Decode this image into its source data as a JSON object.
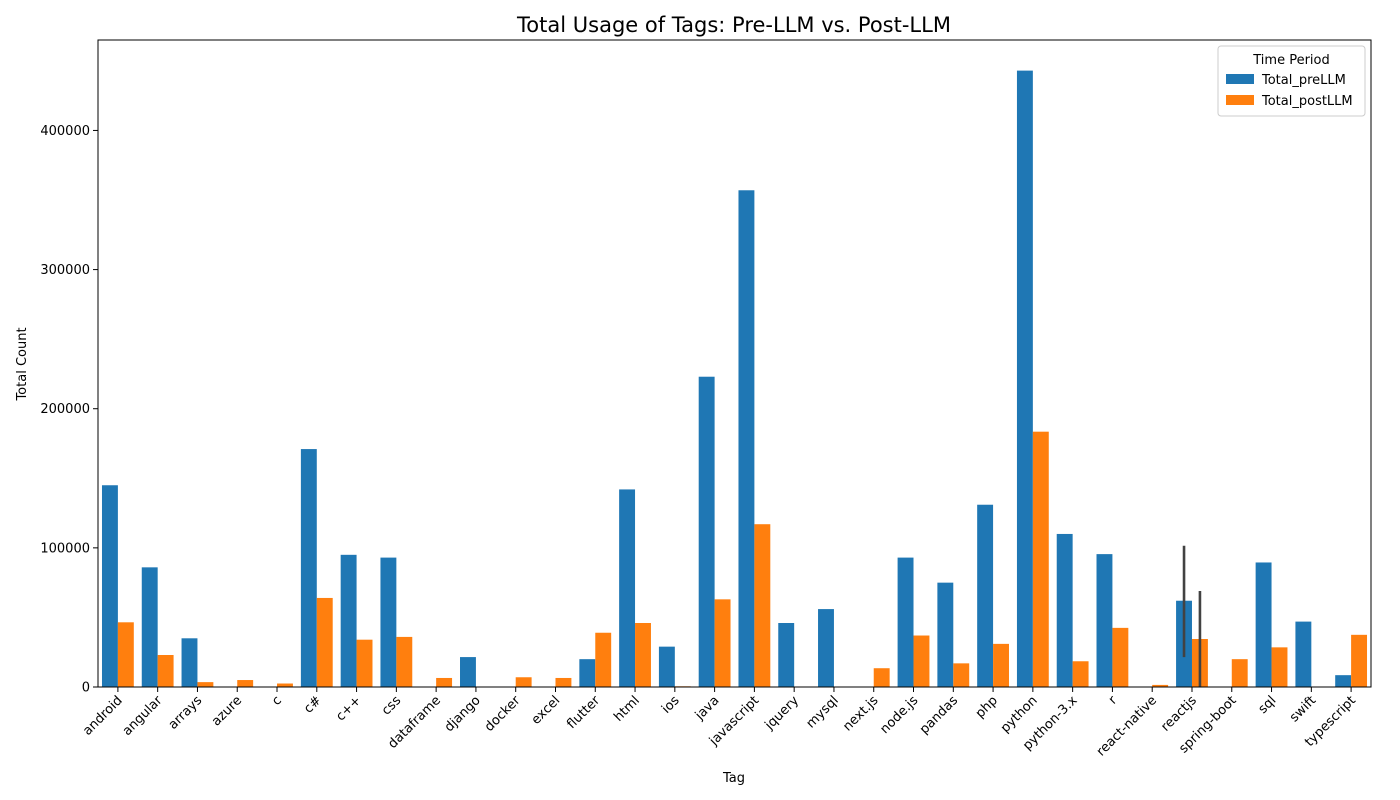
{
  "chart_data": {
    "type": "bar",
    "title": "Total Usage of Tags: Pre-LLM vs. Post-LLM",
    "xlabel": "Tag",
    "ylabel": "Total Count",
    "ylim": [
      0,
      465000
    ],
    "yticks": [
      0,
      100000,
      200000,
      300000,
      400000
    ],
    "grid": false,
    "legend": {
      "title": "Time Period",
      "placement": "top-right"
    },
    "categories": [
      "android",
      "angular",
      "arrays",
      "azure",
      "c",
      "c#",
      "c++",
      "css",
      "dataframe",
      "django",
      "docker",
      "excel",
      "flutter",
      "html",
      "ios",
      "java",
      "javascript",
      "jquery",
      "mysql",
      "next.js",
      "node.js",
      "pandas",
      "php",
      "python",
      "python-3.x",
      "r",
      "react-native",
      "reactjs",
      "spring-boot",
      "sql",
      "swift",
      "typescript"
    ],
    "series": [
      {
        "name": "Total_preLLM",
        "color": "#1f77b4",
        "values": [
          145000,
          86000,
          35000,
          0,
          0,
          171000,
          95000,
          93000,
          0,
          21500,
          0,
          0,
          20000,
          142000,
          29000,
          223000,
          357000,
          46000,
          56000,
          0,
          93000,
          75000,
          131000,
          443000,
          110000,
          95500,
          0,
          62000,
          0,
          89500,
          47000,
          8500
        ]
      },
      {
        "name": "Total_postLLM",
        "color": "#ff7f0e",
        "values": [
          46500,
          23000,
          3500,
          5000,
          2500,
          64000,
          34000,
          36000,
          6500,
          0,
          7000,
          6500,
          39000,
          46000,
          500,
          63000,
          117000,
          0,
          0,
          13500,
          37000,
          17000,
          31000,
          183500,
          18500,
          42500,
          1500,
          34500,
          20000,
          28500,
          0,
          37500
        ]
      }
    ],
    "error_bars": [
      {
        "category": "reactjs",
        "series": "Total_preLLM",
        "low": 21500,
        "high": 101500
      },
      {
        "category": "reactjs",
        "series": "Total_postLLM",
        "low": 0,
        "high": 69000
      }
    ]
  }
}
